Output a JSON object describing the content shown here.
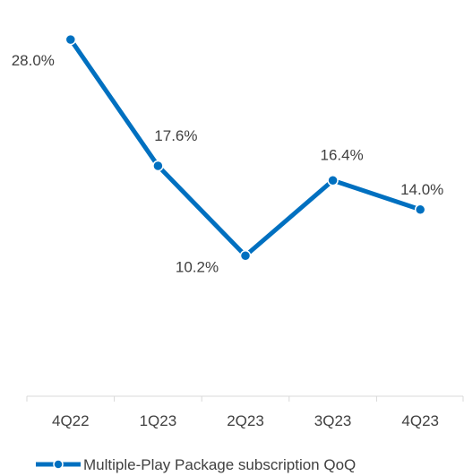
{
  "chart_data": {
    "type": "line",
    "categories": [
      "4Q22",
      "1Q23",
      "2Q23",
      "3Q23",
      "4Q23"
    ],
    "series": [
      {
        "name": "Multiple-Play Package subscription QoQ",
        "values": [
          28.0,
          17.6,
          10.2,
          16.4,
          14.0
        ],
        "labels": [
          "28.0%",
          "17.6%",
          "10.2%",
          "16.4%",
          "14.0%"
        ],
        "color": "#0070C0"
      }
    ],
    "title": "",
    "xlabel": "",
    "ylabel": "",
    "ylim": [
      -10,
      30
    ],
    "grid": false,
    "legend": "bottom-center"
  }
}
